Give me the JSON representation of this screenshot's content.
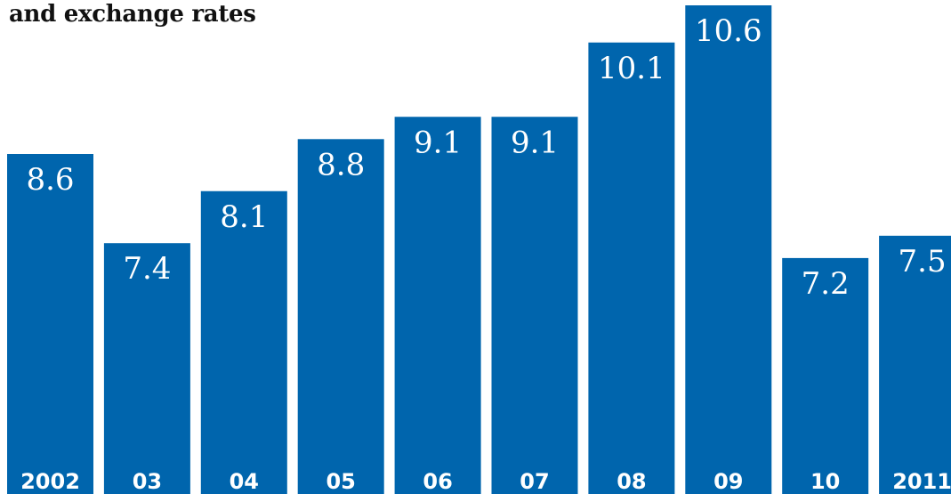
{
  "subtitle": "and exchange rates",
  "colors": {
    "bar": "#0065ad",
    "label": "#ffffff"
  },
  "chart_data": {
    "type": "bar",
    "title": "",
    "subtitle": "and exchange rates",
    "xlabel": "",
    "ylabel": "",
    "categories": [
      "2002",
      "03",
      "04",
      "05",
      "06",
      "07",
      "08",
      "09",
      "10",
      "2011"
    ],
    "values": [
      8.6,
      7.4,
      8.1,
      8.8,
      9.1,
      9.1,
      10.1,
      10.6,
      7.2,
      7.5
    ],
    "data_labels": [
      "8.6",
      "7.4",
      "8.1",
      "8.8",
      "9.1",
      "9.1",
      "10.1",
      "10.6",
      "7.2",
      "7.5"
    ],
    "ylim": [
      0,
      10.6
    ],
    "grid": false,
    "legend": "none"
  }
}
